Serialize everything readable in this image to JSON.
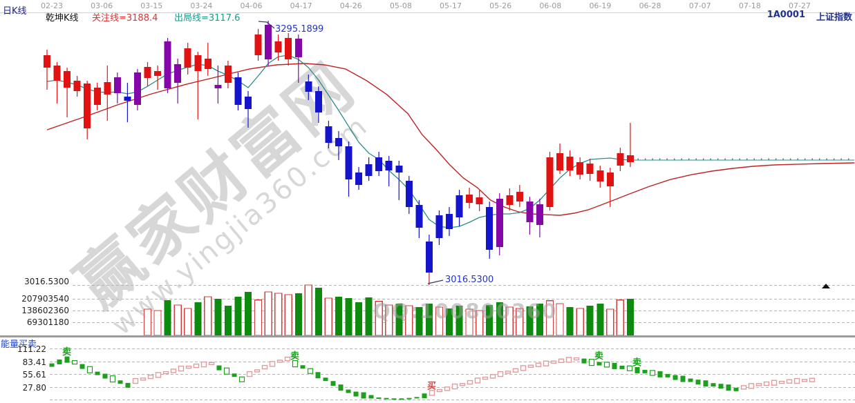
{
  "header": {
    "left_label": "日K线",
    "sub_label": "乾坤K线",
    "watch_line_label": "关注线=3188.4",
    "exit_line_label": "出局线=3117.6",
    "symbol": "1A0001",
    "index_name": "上证指数"
  },
  "dates": [
    "02-23",
    "03-06",
    "03-15",
    "03-24",
    "04-06",
    "04-17",
    "04-26",
    "05-08",
    "05-17",
    "05-26",
    "06-08",
    "06-19",
    "06-28",
    "07-07",
    "07-18",
    "07-27"
  ],
  "axis": {
    "price_label": "3016.5300",
    "volume_labels": [
      "207903540",
      "138602360",
      "69301180"
    ],
    "indicator_title": "能量买卖",
    "indicator_labels": [
      "111.22",
      "83.41",
      "55.61",
      "27.80"
    ]
  },
  "annotations": {
    "peak": "3295.1899",
    "low": "3016.5300"
  },
  "watermark": {
    "line1": "赢家财富网",
    "line2": "www.yingjia360.com",
    "qq": "QQ:100800360"
  },
  "colors": {
    "up": "#e11212",
    "down": "#1414cc",
    "signal": "#8408a8",
    "ma_short": "#2e8b8b",
    "ma_long": "#c22020",
    "volume_up_outline": "#d43c3c",
    "volume_down_green": "#0e8a0e",
    "indicator_green": "#1ba11b",
    "indicator_pink": "#e09c9c",
    "annotation_blue": "#2233cc",
    "sell_label": "#1e9e1e",
    "buy_label": "#e04040",
    "grid": "#b5b5b5",
    "header_blue": "#222288",
    "watch_red": "#e13030",
    "exit_teal": "#1a9a8a"
  },
  "chart_data": {
    "type": "candlestick+bar",
    "title": "乾坤K线 日K线 1A0001 上证指数",
    "main": {
      "type": "candlestick",
      "ylim": [
        3016.53,
        3295.19
      ],
      "peak_value": 3295.1899,
      "low_value": 3016.53,
      "candles": [
        [
          "r",
          3245.7,
          3264.6,
          3222.4,
          3258.8
        ],
        [
          "r",
          3231.9,
          3251.5,
          3207.9,
          3247.9
        ],
        [
          "r",
          3224.6,
          3245.7,
          3193.3,
          3242.1
        ],
        [
          "r",
          3221.0,
          3237.0,
          3215.1,
          3231.9
        ],
        [
          "r",
          3181.7,
          3231.9,
          3170.0,
          3229.0
        ],
        [
          "r",
          3206.4,
          3229.7,
          3200.6,
          3224.6
        ],
        [
          "r",
          3217.3,
          3247.9,
          3189.7,
          3230.4
        ],
        [
          "p",
          3218.8,
          3240.6,
          3207.9,
          3235.5
        ],
        [
          "b",
          3215.1,
          3229.7,
          3188.2,
          3210.8
        ],
        [
          "p",
          3206.4,
          3244.2,
          3200.6,
          3240.6
        ],
        [
          "r",
          3234.8,
          3251.5,
          3226.0,
          3246.4
        ],
        [
          "r",
          3237.0,
          3247.9,
          3222.4,
          3242.1
        ],
        [
          "p",
          3223.9,
          3277.0,
          3218.8,
          3273.3
        ],
        [
          "p",
          3229.7,
          3255.2,
          3207.9,
          3249.3
        ],
        [
          "r",
          3245.7,
          3271.9,
          3238.4,
          3266.1
        ],
        [
          "r",
          3242.1,
          3262.4,
          3191.1,
          3258.8
        ],
        [
          "r",
          3244.2,
          3271.9,
          3237.0,
          3255.2
        ],
        [
          "p",
          3223.9,
          3247.9,
          3207.9,
          3227.5
        ],
        [
          "r",
          3229.7,
          3253.0,
          3223.9,
          3247.9
        ],
        [
          "b",
          3235.5,
          3240.6,
          3200.6,
          3206.4
        ],
        [
          "b",
          3215.1,
          3221.0,
          3182.4,
          3202.0
        ],
        [
          "r",
          3258.8,
          3286.5,
          3253.0,
          3280.6
        ],
        [
          "p",
          3254.4,
          3295.19,
          3247.9,
          3290.8
        ],
        [
          "r",
          3261.7,
          3280.6,
          3253.0,
          3273.3
        ],
        [
          "r",
          3254.4,
          3282.1,
          3247.9,
          3277.0
        ],
        [
          "p",
          3256.6,
          3280.6,
          3229.7,
          3276.3
        ],
        [
          "b",
          3231.1,
          3238.4,
          3211.5,
          3220.2
        ],
        [
          "b",
          3221.0,
          3226.0,
          3187.5,
          3198.4
        ],
        [
          "b",
          3183.8,
          3189.7,
          3160.6,
          3166.4
        ],
        [
          "b",
          3171.5,
          3178.8,
          3148.2,
          3162.7
        ],
        [
          "b",
          3162.7,
          3167.8,
          3109.6,
          3127.8
        ],
        [
          "b",
          3135.1,
          3140.9,
          3116.9,
          3122.0
        ],
        [
          "b",
          3143.8,
          3151.1,
          3126.4,
          3131.5
        ],
        [
          "b",
          3151.1,
          3156.9,
          3131.5,
          3136.6
        ],
        [
          "b",
          3147.5,
          3152.6,
          3120.5,
          3137.3
        ],
        [
          "b",
          3142.4,
          3147.5,
          3106.0,
          3135.1
        ],
        [
          "b",
          3126.4,
          3131.5,
          3091.5,
          3098.7
        ],
        [
          "b",
          3100.9,
          3106.0,
          3066.0,
          3076.9
        ],
        [
          "b",
          3062.3,
          3069.6,
          3016.53,
          3029.6
        ],
        [
          "b",
          3090.0,
          3095.1,
          3058.7,
          3066.0
        ],
        [
          "b",
          3091.5,
          3098.7,
          3068.2,
          3075.4
        ],
        [
          "b",
          3111.1,
          3116.9,
          3078.3,
          3087.8
        ],
        [
          "r",
          3103.1,
          3119.1,
          3097.3,
          3111.8
        ],
        [
          "r",
          3101.6,
          3116.2,
          3094.4,
          3108.9
        ],
        [
          "b",
          3098.7,
          3104.5,
          3044.1,
          3053.6
        ],
        [
          "p",
          3056.5,
          3113.3,
          3047.8,
          3107.5
        ],
        [
          "r",
          3100.9,
          3118.4,
          3095.1,
          3111.1
        ],
        [
          "r",
          3104.5,
          3122.0,
          3098.7,
          3114.7
        ],
        [
          "p",
          3082.7,
          3109.6,
          3069.6,
          3104.5
        ],
        [
          "p",
          3079.8,
          3107.5,
          3066.7,
          3101.6
        ],
        [
          "r",
          3098.7,
          3156.9,
          3095.1,
          3151.1
        ],
        [
          "r",
          3137.3,
          3165.7,
          3133.6,
          3155.5
        ],
        [
          "r",
          3137.3,
          3158.4,
          3131.5,
          3151.8
        ],
        [
          "r",
          3132.9,
          3151.1,
          3127.8,
          3146.0
        ],
        [
          "r",
          3133.6,
          3149.7,
          3126.4,
          3144.6
        ],
        [
          "r",
          3125.6,
          3142.4,
          3119.1,
          3137.3
        ],
        [
          "r",
          3120.5,
          3140.2,
          3098.7,
          3135.1
        ],
        [
          "r",
          3142.4,
          3161.3,
          3136.6,
          3155.5
        ],
        [
          "r",
          3146.0,
          3187.5,
          3140.9,
          3153.3
        ]
      ],
      "ma_short_teal": [
        3231.1,
        3232.6,
        3230.4,
        3227.5,
        3223.2,
        3220.2,
        3219.5,
        3220.2,
        3218.1,
        3220.2,
        3226.0,
        3232.6,
        3239.1,
        3242.8,
        3246.4,
        3249.3,
        3247.9,
        3242.1,
        3237.7,
        3231.9,
        3224.6,
        3237.0,
        3250.1,
        3257.3,
        3258.8,
        3254.4,
        3245.7,
        3232.6,
        3216.6,
        3200.6,
        3183.8,
        3167.1,
        3155.5,
        3148.9,
        3137.3,
        3127.8,
        3116.9,
        3101.6,
        3085.6,
        3078.3,
        3076.9,
        3078.3,
        3082.7,
        3087.8,
        3090.0,
        3091.5,
        3091.5,
        3092.9,
        3097.3,
        3106.0,
        3117.6,
        3129.3,
        3138.7,
        3144.6,
        3148.9,
        3149.7,
        3150.4,
        3148.9,
        3148.2
      ],
      "ma_short_flat_extension": 3148.2,
      "ma_long_red": {
        "idx": [
          0,
          3.6,
          7.0,
          10.4,
          13.9,
          17.3,
          20.1,
          22.8,
          25.6,
          27.6,
          29.7,
          31.8,
          33.8,
          35.9,
          37.3,
          38.6,
          40.0,
          41.4,
          42.8,
          44.1,
          45.5,
          46.9,
          48.2,
          49.6,
          51.0,
          52.4,
          53.8,
          55.1,
          56.5,
          57.9,
          59.9,
          62.0,
          64.1,
          66.1,
          68.2,
          70.2,
          72.3,
          74.4,
          77.1,
          80.3
        ],
        "p": [
          3180.2,
          3193.3,
          3206.4,
          3218.1,
          3228.3,
          3237.0,
          3244.2,
          3248.6,
          3250.1,
          3248.6,
          3244.2,
          3231.9,
          3217.3,
          3197.0,
          3175.1,
          3160.6,
          3143.8,
          3129.3,
          3119.1,
          3106.0,
          3098.7,
          3093.6,
          3091.5,
          3090.7,
          3090.0,
          3092.2,
          3095.8,
          3100.9,
          3106.7,
          3112.5,
          3120.5,
          3127.8,
          3132.9,
          3136.6,
          3139.5,
          3141.7,
          3143.1,
          3143.8,
          3144.6,
          3145.3
        ]
      }
    },
    "volume": {
      "type": "bar",
      "start_candle_index": 10,
      "axis_values": [
        207903540,
        138602360,
        69301180
      ],
      "bars": [
        [
          "h",
          161000000
        ],
        [
          "h",
          153000000
        ],
        [
          "g",
          214000000
        ],
        [
          "h",
          185000000
        ],
        [
          "h",
          165000000
        ],
        [
          "g",
          202000000
        ],
        [
          "h",
          234000000
        ],
        [
          "g",
          222000000
        ],
        [
          "g",
          181000000
        ],
        [
          "g",
          234000000
        ],
        [
          "g",
          262000000
        ],
        [
          "h",
          214000000
        ],
        [
          "h",
          262000000
        ],
        [
          "h",
          254000000
        ],
        [
          "h",
          246000000
        ],
        [
          "g",
          254000000
        ],
        [
          "h",
          302000000
        ],
        [
          "g",
          286000000
        ],
        [
          "h",
          226000000
        ],
        [
          "g",
          234000000
        ],
        [
          "g",
          226000000
        ],
        [
          "g",
          202000000
        ],
        [
          "g",
          230000000
        ],
        [
          "h",
          206000000
        ],
        [
          "h",
          185000000
        ],
        [
          "g",
          193000000
        ],
        [
          "h",
          181000000
        ],
        [
          "g",
          173000000
        ],
        [
          "g",
          193000000
        ],
        [
          "h",
          173000000
        ],
        [
          "g",
          165000000
        ],
        [
          "g",
          181000000
        ],
        [
          "h",
          161000000
        ],
        [
          "h",
          153000000
        ],
        [
          "g",
          185000000
        ],
        [
          "g",
          202000000
        ],
        [
          "h",
          173000000
        ],
        [
          "h",
          165000000
        ],
        [
          "g",
          177000000
        ],
        [
          "g",
          193000000
        ],
        [
          "h",
          210000000
        ],
        [
          "h",
          193000000
        ],
        [
          "g",
          173000000
        ],
        [
          "h",
          165000000
        ],
        [
          "g",
          181000000
        ],
        [
          "g",
          193000000
        ],
        [
          "h",
          161000000
        ],
        [
          "h",
          214000000
        ],
        [
          "g",
          222000000
        ]
      ]
    },
    "indicator": {
      "type": "bar",
      "title": "能量买卖",
      "axis_values": [
        111.22,
        83.41,
        55.61,
        27.8
      ],
      "bars": [
        [
          "g",
          75
        ],
        [
          "g",
          82
        ],
        [
          "g",
          87
        ],
        [
          "gh",
          81
        ],
        [
          "g",
          72
        ],
        [
          "gh",
          65
        ],
        [
          "g",
          57
        ],
        [
          "g",
          51
        ],
        [
          "gh",
          45
        ],
        [
          "g",
          38
        ],
        [
          "g",
          31
        ],
        [
          "p",
          39
        ],
        [
          "p",
          43
        ],
        [
          "p",
          48
        ],
        [
          "p",
          52
        ],
        [
          "p",
          57
        ],
        [
          "p",
          61
        ],
        [
          "p",
          66
        ],
        [
          "p",
          69
        ],
        [
          "p",
          72
        ],
        [
          "p",
          75
        ],
        [
          "p",
          77
        ],
        [
          "g",
          69
        ],
        [
          "gh",
          62
        ],
        [
          "g",
          53
        ],
        [
          "gh",
          44
        ],
        [
          "p",
          54
        ],
        [
          "p",
          61
        ],
        [
          "p",
          69
        ],
        [
          "p",
          76
        ],
        [
          "p",
          82
        ],
        [
          "p",
          87
        ],
        [
          "gh",
          78
        ],
        [
          "g",
          71
        ],
        [
          "gh",
          62
        ],
        [
          "g",
          53
        ],
        [
          "g",
          44
        ],
        [
          "g",
          35
        ],
        [
          "g",
          26
        ],
        [
          "g",
          18
        ],
        [
          "g",
          12
        ],
        [
          "g",
          9
        ],
        [
          "g",
          6
        ],
        [
          "g",
          3
        ],
        [
          "g",
          2
        ],
        [
          "g",
          1
        ],
        [
          "g",
          1
        ],
        [
          "g",
          2
        ],
        [
          "g",
          4
        ],
        [
          "g",
          8
        ],
        [
          "p",
          13
        ],
        [
          "p",
          18
        ],
        [
          "p",
          22
        ],
        [
          "p",
          27
        ],
        [
          "p",
          31
        ],
        [
          "p",
          36
        ],
        [
          "p",
          40
        ],
        [
          "p",
          45
        ],
        [
          "p",
          49
        ],
        [
          "p",
          54
        ],
        [
          "p",
          58
        ],
        [
          "p",
          62
        ],
        [
          "p",
          67
        ],
        [
          "p",
          71
        ],
        [
          "p",
          74
        ],
        [
          "p",
          77
        ],
        [
          "p",
          80
        ],
        [
          "p",
          83
        ],
        [
          "p",
          85
        ],
        [
          "p",
          87
        ],
        [
          "g",
          84
        ],
        [
          "gh",
          81
        ],
        [
          "g",
          78
        ],
        [
          "gh",
          76
        ],
        [
          "g",
          73
        ],
        [
          "g",
          70
        ],
        [
          "gh",
          68
        ],
        [
          "g",
          64
        ],
        [
          "g",
          61
        ],
        [
          "gh",
          58
        ],
        [
          "g",
          55
        ],
        [
          "g",
          52
        ],
        [
          "g",
          48
        ],
        [
          "g",
          45
        ],
        [
          "g",
          42
        ],
        [
          "g",
          38
        ],
        [
          "g",
          35
        ],
        [
          "g",
          32
        ],
        [
          "g",
          29
        ],
        [
          "g",
          26
        ],
        [
          "g",
          22
        ],
        [
          "p",
          25
        ],
        [
          "p",
          28
        ],
        [
          "p",
          31
        ],
        [
          "p",
          33
        ],
        [
          "p",
          35
        ],
        [
          "p",
          36
        ],
        [
          "p",
          38
        ],
        [
          "p",
          39
        ],
        [
          "p",
          40
        ],
        [
          "p",
          41
        ]
      ],
      "labels": [
        {
          "text": "卖",
          "k": 2,
          "type": "sell"
        },
        {
          "text": "卖",
          "k": 32,
          "type": "sell"
        },
        {
          "text": "买",
          "k": 50,
          "type": "buy"
        },
        {
          "text": "卖",
          "k": 72,
          "type": "sell"
        },
        {
          "text": "卖",
          "k": 77,
          "type": "sell"
        }
      ]
    }
  }
}
